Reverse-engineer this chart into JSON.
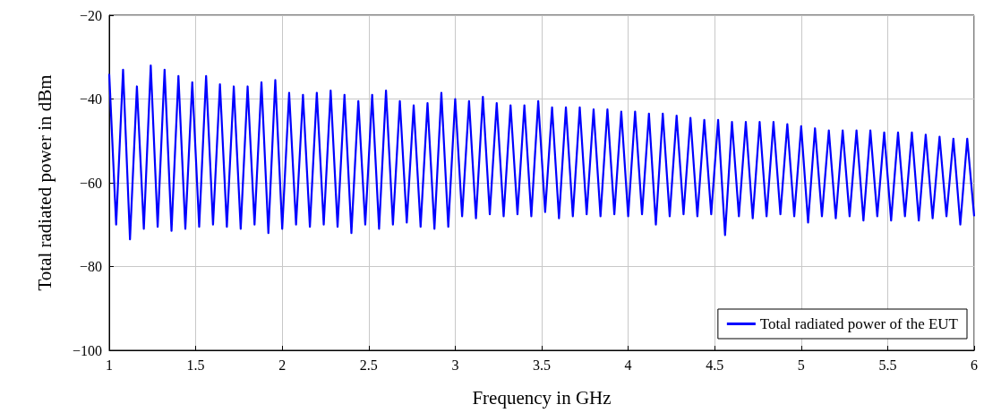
{
  "chart_data": {
    "type": "line",
    "xlabel": "Frequency in GHz",
    "ylabel": "Total radiated power in dBm",
    "xlim": [
      1,
      6
    ],
    "xticks": [
      1,
      1.5,
      2,
      2.5,
      3,
      3.5,
      4,
      4.5,
      5,
      5.5,
      6
    ],
    "ylim": [
      -100,
      -20
    ],
    "yticks": [
      {
        "value": -100,
        "label": "−100"
      },
      {
        "value": -80,
        "label": "−80"
      },
      {
        "value": -60,
        "label": "−60"
      },
      {
        "value": -40,
        "label": "−40"
      },
      {
        "value": -20,
        "label": "−20"
      }
    ],
    "grid": true,
    "legend": "bottom right",
    "marker": "none",
    "line_style": "solid",
    "x": [
      1.0,
      1.04,
      1.08,
      1.12,
      1.16,
      1.2,
      1.24,
      1.28,
      1.32,
      1.36,
      1.4,
      1.44,
      1.48,
      1.52,
      1.56,
      1.6,
      1.64,
      1.68,
      1.72,
      1.76,
      1.8,
      1.84,
      1.88,
      1.92,
      1.96,
      2.0,
      2.04,
      2.08,
      2.12,
      2.16,
      2.2,
      2.24,
      2.28,
      2.32,
      2.36,
      2.4,
      2.44,
      2.48,
      2.52,
      2.56,
      2.6,
      2.64,
      2.68,
      2.72,
      2.76,
      2.8,
      2.84,
      2.88,
      2.92,
      2.96,
      3.0,
      3.04,
      3.08,
      3.12,
      3.16,
      3.2,
      3.24,
      3.28,
      3.32,
      3.36,
      3.4,
      3.44,
      3.48,
      3.52,
      3.56,
      3.6,
      3.64,
      3.68,
      3.72,
      3.76,
      3.8,
      3.84,
      3.88,
      3.92,
      3.96,
      4.0,
      4.04,
      4.08,
      4.12,
      4.16,
      4.2,
      4.24,
      4.28,
      4.32,
      4.36,
      4.4,
      4.44,
      4.48,
      4.52,
      4.56,
      4.6,
      4.64,
      4.68,
      4.72,
      4.76,
      4.8,
      4.84,
      4.88,
      4.92,
      4.96,
      5.0,
      5.04,
      5.08,
      5.12,
      5.16,
      5.2,
      5.24,
      5.28,
      5.32,
      5.36,
      5.4,
      5.44,
      5.48,
      5.52,
      5.56,
      5.6,
      5.64,
      5.68,
      5.72,
      5.76,
      5.8,
      5.84,
      5.88,
      5.92,
      5.96,
      6.0
    ],
    "series": [
      {
        "name": "Total radiated power of the EUT",
        "color": "#0000ff",
        "values": [
          -34,
          -70,
          -33,
          -73.5,
          -37,
          -71,
          -32,
          -70.5,
          -33,
          -71.5,
          -34.5,
          -71,
          -36,
          -70.5,
          -34.5,
          -70,
          -36.5,
          -70.5,
          -37,
          -71,
          -37,
          -70,
          -36,
          -72,
          -35.5,
          -71,
          -38.5,
          -70,
          -39,
          -70.5,
          -38.5,
          -70,
          -38,
          -70.5,
          -39,
          -72,
          -40.5,
          -70,
          -39,
          -71,
          -38,
          -70,
          -40.5,
          -69.5,
          -41.5,
          -70.5,
          -41,
          -71,
          -38.5,
          -70.5,
          -40,
          -68,
          -40.5,
          -68.5,
          -39.5,
          -67.5,
          -41,
          -68,
          -41.5,
          -67.5,
          -41.5,
          -68,
          -40.5,
          -67,
          -42,
          -68.5,
          -42,
          -68,
          -42,
          -67.5,
          -42.5,
          -68,
          -42.5,
          -67.5,
          -43,
          -68,
          -43,
          -67.5,
          -43.5,
          -70,
          -43.5,
          -68,
          -44,
          -67.5,
          -44.5,
          -68,
          -45,
          -67.5,
          -45,
          -72.5,
          -45.5,
          -68,
          -45.5,
          -68.5,
          -45.5,
          -68,
          -45.5,
          -67.5,
          -46,
          -68,
          -46.5,
          -69.5,
          -47,
          -68,
          -47.5,
          -68.5,
          -47.5,
          -68,
          -47.5,
          -69,
          -47.5,
          -68,
          -48,
          -69,
          -48,
          -68,
          -48,
          -69,
          -48.5,
          -68.5,
          -49,
          -68,
          -49.5,
          -70,
          -49.5,
          -68
        ]
      }
    ]
  }
}
